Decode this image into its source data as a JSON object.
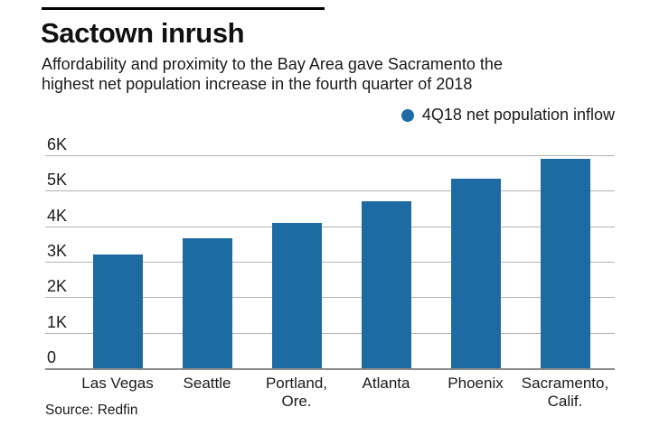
{
  "header": {
    "title": "Sactown inrush",
    "subtitle_line1": "Affordability and proximity to the Bay Area gave Sacramento the",
    "subtitle_line2": "highest net population increase in the fourth quarter of 2018"
  },
  "legend": {
    "label": "4Q18 net population inflow",
    "marker_color": "#1e6ba3"
  },
  "source": "Source: Redfin",
  "colors": {
    "bar_blue": "#1e6ba3",
    "grid_line": "#b3b3b3",
    "axis_line": "#8a8a8a",
    "header_rule": "#000000",
    "text": "#1a1a1a"
  },
  "chart_data": {
    "type": "bar",
    "title": "Sactown inrush",
    "series_name": "4Q18 net population inflow",
    "categories": [
      "Las Vegas",
      "Seattle",
      "Portland, Ore.",
      "Atlanta",
      "Phoenix",
      "Sacramento, Calif."
    ],
    "category_label_lines": [
      [
        "Las Vegas"
      ],
      [
        "Seattle"
      ],
      [
        "Portland,",
        "Ore."
      ],
      [
        "Atlanta"
      ],
      [
        "Phoenix"
      ],
      [
        "Sacramento,",
        "Calif."
      ]
    ],
    "values": [
      3200,
      3650,
      4100,
      4700,
      5350,
      5900
    ],
    "xlabel": "",
    "ylabel": "",
    "ylim": [
      0,
      6000
    ],
    "yticks": [
      {
        "label": "6K",
        "value": 6000
      },
      {
        "label": "5K",
        "value": 5000
      },
      {
        "label": "4K",
        "value": 4000
      },
      {
        "label": "3K",
        "value": 3000
      },
      {
        "label": "2K",
        "value": 2000
      },
      {
        "label": "1K",
        "value": 1000
      },
      {
        "label": "0",
        "value": 0
      }
    ],
    "bar_color": "#1e6ba3",
    "grid": true,
    "legend_position": "top-right"
  }
}
